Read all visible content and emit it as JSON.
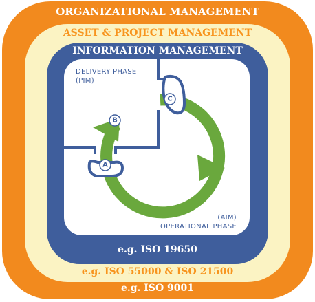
{
  "layers": {
    "organizational": {
      "title": "ORGANIZATIONAL MANAGEMENT",
      "standard": "e.g. ISO 9001"
    },
    "asset_project": {
      "title": "ASSET & PROJECT MANAGEMENT",
      "standard": "e.g. ISO 55000 & ISO 21500"
    },
    "information": {
      "title": "INFORMATION MANAGEMENT",
      "standard": "e.g. ISO 19650"
    }
  },
  "phases": {
    "delivery": {
      "line1": "DELIVERY PHASE",
      "line2": "(PIM)"
    },
    "operational": {
      "line1": "(AIM)",
      "line2": "OPERATIONAL PHASE"
    }
  },
  "nodes": {
    "a": "A",
    "b": "B",
    "c": "C"
  },
  "colors": {
    "organizational": "#f28a1e",
    "asset_project": "#fbf3c3",
    "information": "#3f5e9c",
    "cycle": "#6aa83d"
  }
}
